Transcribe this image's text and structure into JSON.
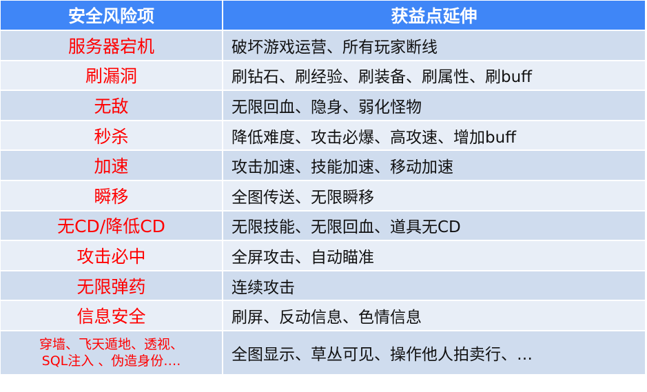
{
  "header": {
    "col1": "安全风险项",
    "col2": "获益点延伸"
  },
  "rows": [
    {
      "risk": "服务器宕机",
      "gain": "破坏游戏运营、所有玩家断线"
    },
    {
      "risk": "刷漏洞",
      "gain": "刷钻石、刷经验、刷装备、刷属性、刷buff"
    },
    {
      "risk": "无敌",
      "gain": "无限回血、隐身、弱化怪物"
    },
    {
      "risk": "秒杀",
      "gain": "降低难度、攻击必爆、高攻速、增加buff"
    },
    {
      "risk": "加速",
      "gain": "攻击加速、技能加速、移动加速"
    },
    {
      "risk": "瞬移",
      "gain": "全图传送、无限瞬移"
    },
    {
      "risk": "无CD/降低CD",
      "gain": "无限技能、无限回血、道具无CD"
    },
    {
      "risk": "攻击必中",
      "gain": "全屏攻击、自动瞄准"
    },
    {
      "risk": "无限弹药",
      "gain": "连续攻击"
    },
    {
      "risk": "信息安全",
      "gain": "刷屏、反动信息、色情信息"
    }
  ],
  "last_row": {
    "risk_line1": "穿墙、飞天遁地、透视、",
    "risk_line2": "SQL注入 、伪造身份….",
    "gain": "全图显示、草丛可见、操作他人拍卖行、…"
  },
  "colors": {
    "header": "#3f86f7",
    "row_dark": "#cfdcee",
    "row_light": "#e8eef7",
    "risk_text": "#ff0000"
  }
}
